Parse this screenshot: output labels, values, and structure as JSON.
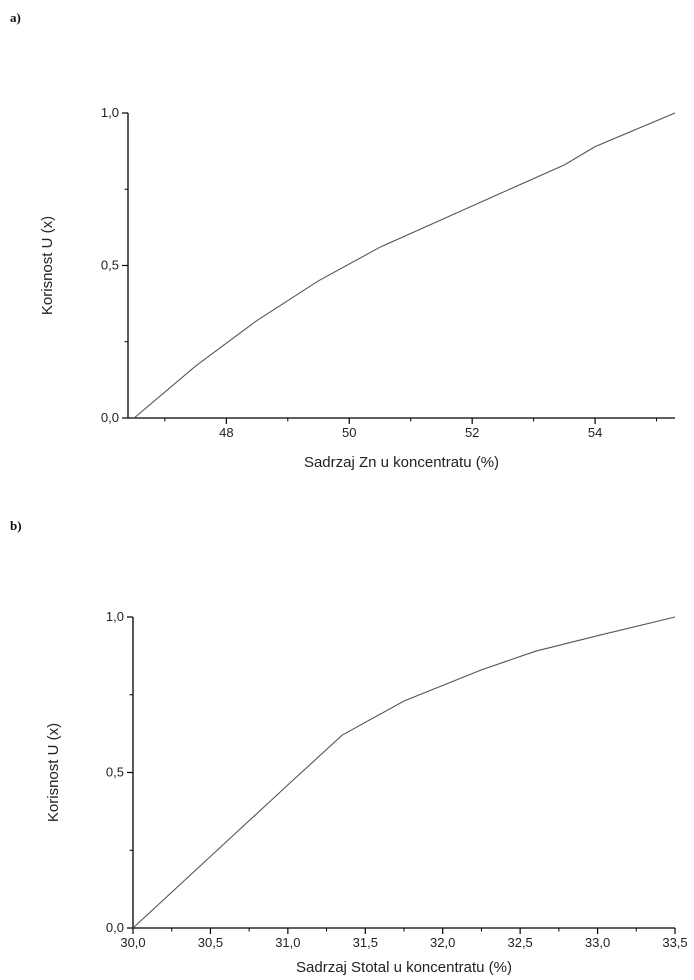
{
  "panels": {
    "a": {
      "label": "a)"
    },
    "b": {
      "label": "b)"
    }
  },
  "chart_data": [
    {
      "type": "line",
      "xlabel": "Sadrzaj Zn u koncentratu (%)",
      "ylabel": "Korisnost U (x)",
      "xlim": [
        46.4,
        55.3
      ],
      "ylim": [
        0,
        1
      ],
      "x_ticks": [
        48,
        50,
        52,
        54
      ],
      "x_tick_labels": [
        "48",
        "50",
        "52",
        "54"
      ],
      "y_ticks": [
        0,
        0.5,
        1
      ],
      "y_tick_labels": [
        "0,0",
        "0,5",
        "1,0"
      ],
      "grid": false,
      "series": [
        {
          "x": [
            46.5,
            47.5,
            48.5,
            49.5,
            50.5,
            51.5,
            52.5,
            53.5,
            54.0,
            55.3
          ],
          "y": [
            0.0,
            0.17,
            0.32,
            0.45,
            0.56,
            0.65,
            0.74,
            0.83,
            0.89,
            1.0
          ]
        }
      ]
    },
    {
      "type": "line",
      "xlabel": "Sadrzaj Stotal u koncentratu (%)",
      "ylabel": "Korisnost U (x)",
      "xlim": [
        30.0,
        33.5
      ],
      "ylim": [
        0,
        1
      ],
      "x_ticks": [
        30.0,
        30.5,
        31.0,
        31.5,
        32.0,
        32.5,
        33.0,
        33.5
      ],
      "x_tick_labels": [
        "30,0",
        "30,5",
        "31,0",
        "31,5",
        "32,0",
        "32,5",
        "33,0",
        "33,5"
      ],
      "y_ticks": [
        0,
        0.5,
        1
      ],
      "y_tick_labels": [
        "0,0",
        "0,5",
        "1,0"
      ],
      "grid": false,
      "series": [
        {
          "x": [
            30.0,
            30.5,
            31.0,
            31.35,
            31.75,
            32.25,
            32.6,
            33.0,
            33.5
          ],
          "y": [
            0.0,
            0.23,
            0.46,
            0.62,
            0.73,
            0.83,
            0.89,
            0.94,
            1.0
          ]
        }
      ]
    }
  ]
}
